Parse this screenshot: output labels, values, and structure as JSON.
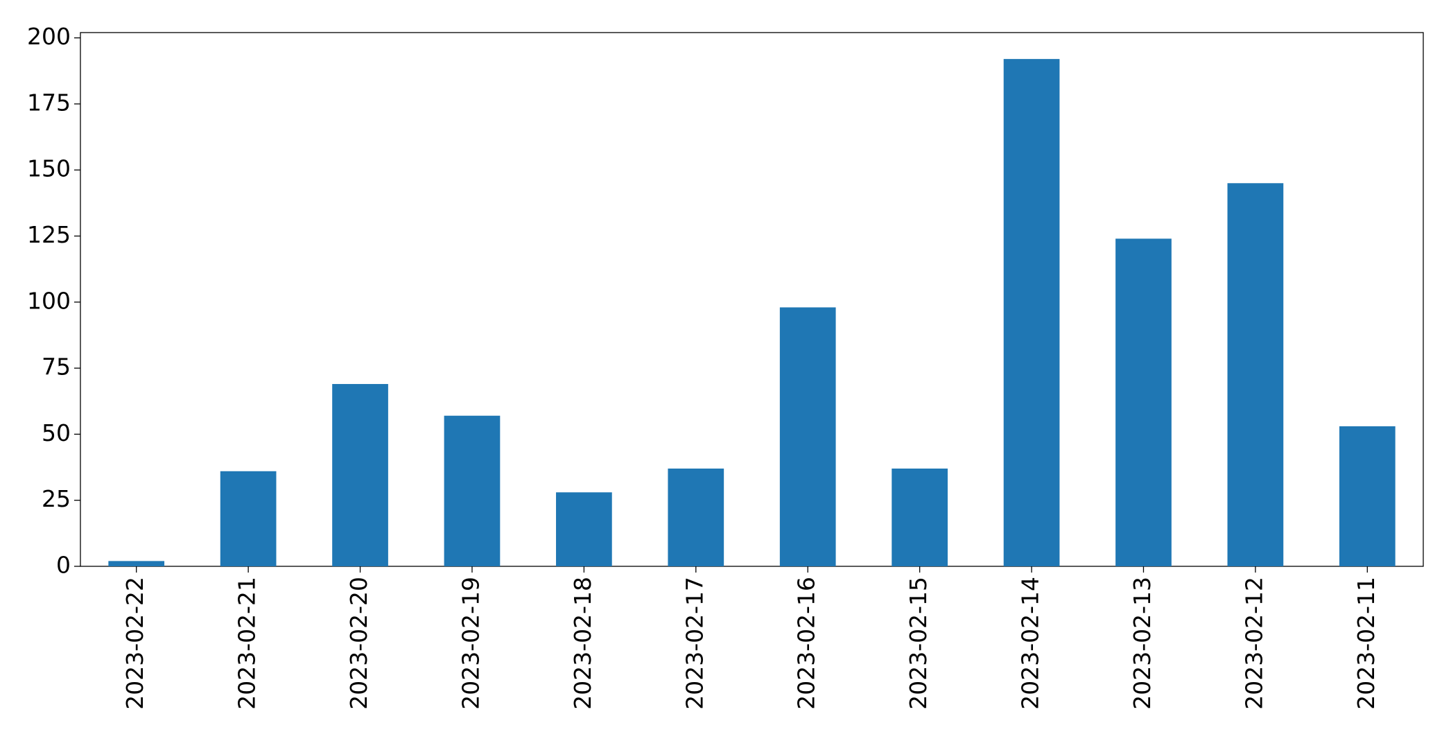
{
  "chart_data": {
    "type": "bar",
    "categories": [
      "2023-02-22",
      "2023-02-21",
      "2023-02-20",
      "2023-02-19",
      "2023-02-18",
      "2023-02-17",
      "2023-02-16",
      "2023-02-15",
      "2023-02-14",
      "2023-02-13",
      "2023-02-12",
      "2023-02-11"
    ],
    "values": [
      2,
      36,
      69,
      57,
      28,
      37,
      98,
      37,
      192,
      124,
      145,
      53
    ],
    "color": "#1f77b4",
    "ylim": [
      0,
      202
    ],
    "yticks": [
      0,
      25,
      50,
      75,
      100,
      125,
      150,
      175,
      200
    ],
    "grid": false
  }
}
